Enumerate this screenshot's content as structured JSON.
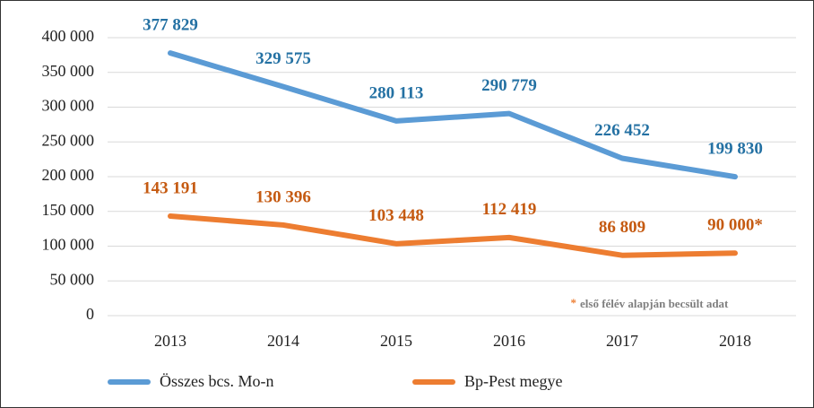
{
  "chart_data": {
    "type": "line",
    "categories": [
      "2013",
      "2014",
      "2015",
      "2016",
      "2017",
      "2018"
    ],
    "series": [
      {
        "name": "Összes bcs. Mo-n",
        "color": "#5b9bd5",
        "label_color": "#2471a3",
        "values": [
          377829,
          329575,
          280113,
          290779,
          226452,
          199830
        ],
        "value_labels": [
          "377 829",
          "329 575",
          "280 113",
          "290 779",
          "226 452",
          "199 830"
        ]
      },
      {
        "name": "Bp-Pest megye",
        "color": "#ed7d31",
        "label_color": "#c55a11",
        "values": [
          143191,
          130396,
          103448,
          112419,
          86809,
          90000
        ],
        "value_labels": [
          "143 191",
          "130 396",
          "103 448",
          "112 419",
          "86 809",
          "90 000*"
        ]
      }
    ],
    "ylim": [
      0,
      400000
    ],
    "yticks": [
      0,
      {
        "value": 50000,
        "label": "50 000"
      },
      {
        "value": 100000,
        "label": "100 000"
      },
      {
        "value": 150000,
        "label": "150 000"
      },
      {
        "value": 200000,
        "label": "200 000"
      },
      {
        "value": 250000,
        "label": "250 000"
      },
      {
        "value": 300000,
        "label": "300 000"
      },
      {
        "value": 350000,
        "label": "350 000"
      },
      {
        "value": 400000,
        "label": "400 000"
      }
    ],
    "grid": true,
    "annotation_marker": "*",
    "annotation": "első félév alapján becsült adat"
  }
}
